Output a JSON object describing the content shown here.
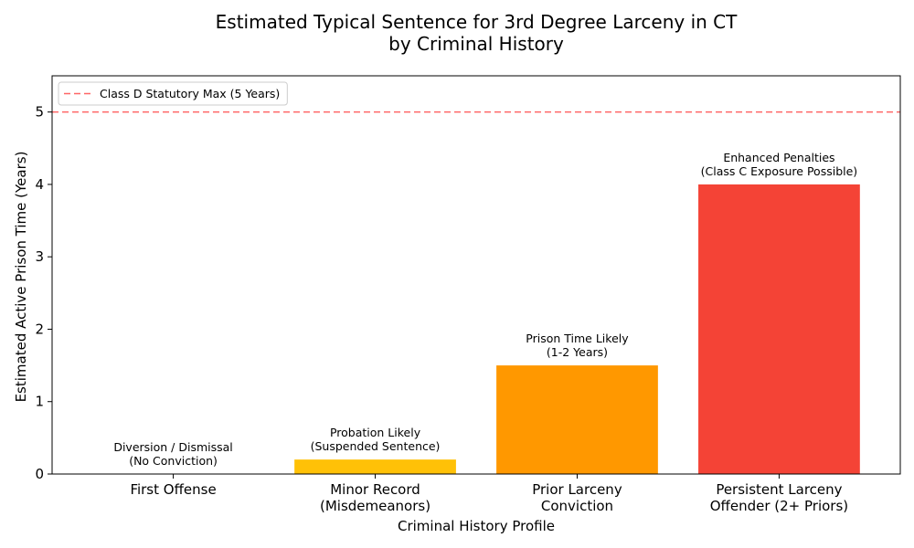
{
  "chart_data": {
    "type": "bar",
    "title": [
      "Estimated Typical Sentence for 3rd Degree Larceny in CT",
      "by Criminal History"
    ],
    "xlabel": "Criminal History Profile",
    "ylabel": "Estimated Active Prison Time (Years)",
    "ylim": [
      0,
      5.5
    ],
    "yticks": [
      0,
      1,
      2,
      3,
      4,
      5
    ],
    "categories": [
      [
        "First Offense"
      ],
      [
        "Minor Record",
        "(Misdemeanors)"
      ],
      [
        "Prior Larceny",
        "Conviction"
      ],
      [
        "Persistent Larceny",
        "Offender (2+ Priors)"
      ]
    ],
    "values": [
      0,
      0.2,
      1.5,
      4
    ],
    "bar_colors": [
      "#cccccc",
      "#ffc107",
      "#ff9800",
      "#f44336"
    ],
    "bar_labels": [
      [
        "Diversion / Dismissal",
        "(No Conviction)"
      ],
      [
        "Probation Likely",
        "(Suspended Sentence)"
      ],
      [
        "Prison Time Likely",
        "(1-2 Years)"
      ],
      [
        "Enhanced Penalties",
        "(Class C Exposure Possible)"
      ]
    ],
    "reference_line": {
      "value": 5,
      "label": "Class D Statutory Max (5 Years)",
      "color": "#ff6666",
      "style": "dashed"
    },
    "legend": {
      "placement": "top-left"
    },
    "grid": false
  }
}
